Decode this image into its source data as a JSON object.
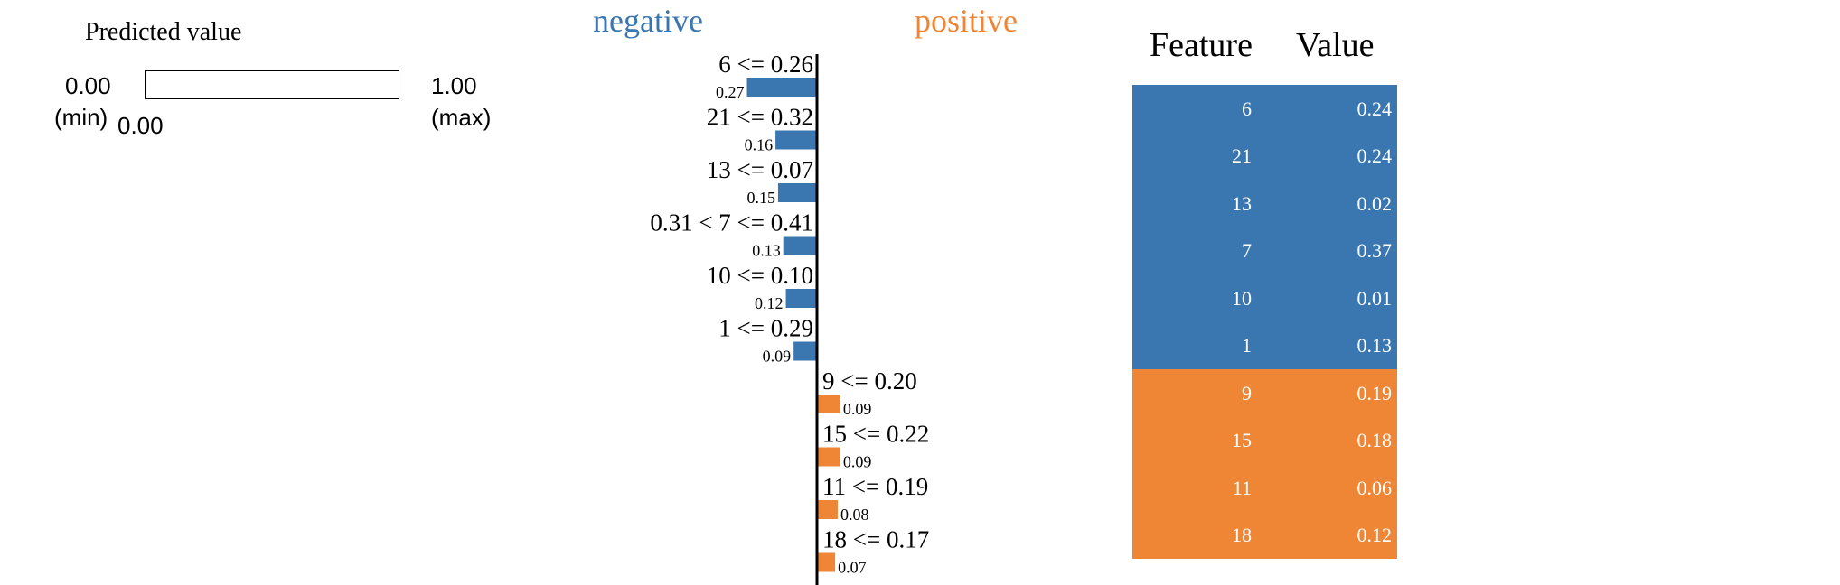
{
  "predicted": {
    "title": "Predicted value",
    "min_value": "0.00",
    "min_label": "(min)",
    "max_value": "1.00",
    "max_label": "(max)",
    "current_value": "0.00",
    "current_fraction": 0.0
  },
  "headers": {
    "negative": "negative",
    "positive": "positive"
  },
  "colors": {
    "negative": "#3a76af",
    "positive": "#ef8636"
  },
  "chart_data": {
    "type": "bar",
    "orientation": "horizontal-diverging",
    "title": "",
    "xlabel": "",
    "ylabel": "",
    "groups": [
      "negative",
      "positive"
    ],
    "items": [
      {
        "label": "6 <= 0.26",
        "value": "0.27",
        "weight": 0.27,
        "side": "negative"
      },
      {
        "label": "21 <= 0.32",
        "value": "0.16",
        "weight": 0.16,
        "side": "negative"
      },
      {
        "label": "13 <= 0.07",
        "value": "0.15",
        "weight": 0.15,
        "side": "negative"
      },
      {
        "label": "0.31 < 7 <= 0.41",
        "value": "0.13",
        "weight": 0.13,
        "side": "negative"
      },
      {
        "label": "10 <= 0.10",
        "value": "0.12",
        "weight": 0.12,
        "side": "negative"
      },
      {
        "label": "1 <= 0.29",
        "value": "0.09",
        "weight": 0.09,
        "side": "negative"
      },
      {
        "label": "9 <= 0.20",
        "value": "0.09",
        "weight": 0.09,
        "side": "positive"
      },
      {
        "label": "15 <= 0.22",
        "value": "0.09",
        "weight": 0.09,
        "side": "positive"
      },
      {
        "label": "11 <= 0.19",
        "value": "0.08",
        "weight": 0.08,
        "side": "positive"
      },
      {
        "label": "18 <= 0.17",
        "value": "0.07",
        "weight": 0.07,
        "side": "positive"
      }
    ]
  },
  "table": {
    "headers": [
      "Feature",
      "Value"
    ],
    "rows": [
      {
        "feature": "6",
        "value": "0.24",
        "side": "negative"
      },
      {
        "feature": "21",
        "value": "0.24",
        "side": "negative"
      },
      {
        "feature": "13",
        "value": "0.02",
        "side": "negative"
      },
      {
        "feature": "7",
        "value": "0.37",
        "side": "negative"
      },
      {
        "feature": "10",
        "value": "0.01",
        "side": "negative"
      },
      {
        "feature": "1",
        "value": "0.13",
        "side": "negative"
      },
      {
        "feature": "9",
        "value": "0.19",
        "side": "positive"
      },
      {
        "feature": "15",
        "value": "0.18",
        "side": "positive"
      },
      {
        "feature": "11",
        "value": "0.06",
        "side": "positive"
      },
      {
        "feature": "18",
        "value": "0.12",
        "side": "positive"
      }
    ]
  }
}
